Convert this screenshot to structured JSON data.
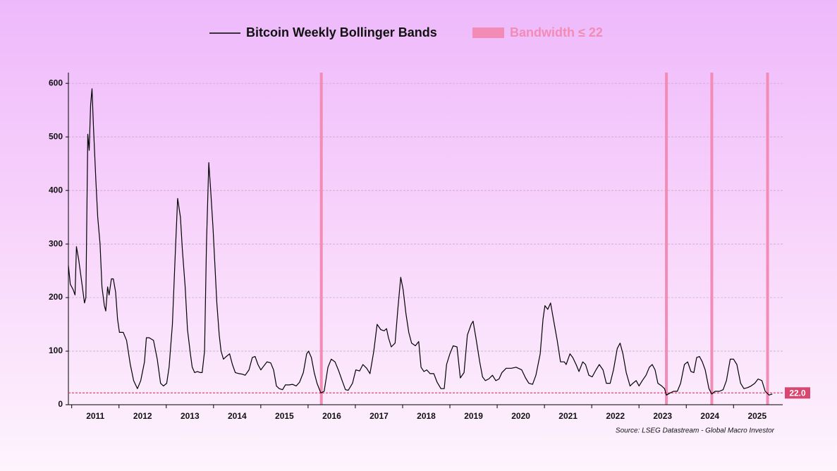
{
  "chart_data": {
    "type": "line",
    "source": "Source: LSEG Datastream - Global Macro Investor",
    "x": [
      2010.93,
      2010.97,
      2011.03,
      2011.07,
      2011.1,
      2011.15,
      2011.21,
      2011.27,
      2011.3,
      2011.34,
      2011.37,
      2011.4,
      2011.43,
      2011.46,
      2011.51,
      2011.55,
      2011.6,
      2011.64,
      2011.69,
      2011.72,
      2011.76,
      2011.79,
      2011.84,
      2011.88,
      2011.93,
      2011.97,
      2012.01,
      2012.09,
      2012.16,
      2012.24,
      2012.31,
      2012.39,
      2012.46,
      2012.54,
      2012.58,
      2012.64,
      2012.73,
      2012.81,
      2012.88,
      2012.94,
      2013.01,
      2013.06,
      2013.13,
      2013.19,
      2013.24,
      2013.3,
      2013.34,
      2013.4,
      2013.45,
      2013.51,
      2013.55,
      2013.6,
      2013.66,
      2013.72,
      2013.76,
      2013.81,
      2013.85,
      2013.9,
      2013.94,
      2013.99,
      2014.03,
      2014.07,
      2014.12,
      2014.16,
      2014.21,
      2014.27,
      2014.34,
      2014.4,
      2014.46,
      2014.54,
      2014.61,
      2014.67,
      2014.75,
      2014.82,
      2014.88,
      2014.94,
      2015.0,
      2015.06,
      2015.13,
      2015.21,
      2015.27,
      2015.33,
      2015.39,
      2015.46,
      2015.52,
      2015.6,
      2015.67,
      2015.75,
      2015.82,
      2015.9,
      2015.97,
      2016.01,
      2016.07,
      2016.13,
      2016.19,
      2016.27,
      2016.34,
      2016.42,
      2016.49,
      2016.57,
      2016.64,
      2016.72,
      2016.79,
      2016.85,
      2016.94,
      2017.01,
      2017.09,
      2017.16,
      2017.24,
      2017.31,
      2017.39,
      2017.46,
      2017.54,
      2017.61,
      2017.66,
      2017.7,
      2017.76,
      2017.84,
      2017.9,
      2017.96,
      2018.01,
      2018.07,
      2018.13,
      2018.19,
      2018.27,
      2018.34,
      2018.39,
      2018.45,
      2018.51,
      2018.58,
      2018.66,
      2018.73,
      2018.81,
      2018.88,
      2018.93,
      2019.0,
      2019.07,
      2019.15,
      2019.22,
      2019.3,
      2019.37,
      2019.45,
      2019.49,
      2019.55,
      2019.63,
      2019.69,
      2019.75,
      2019.82,
      2019.9,
      2019.97,
      2020.04,
      2020.1,
      2020.19,
      2020.3,
      2020.4,
      2020.52,
      2020.6,
      2020.67,
      2020.75,
      2020.82,
      2020.91,
      2020.97,
      2021.01,
      2021.07,
      2021.13,
      2021.19,
      2021.27,
      2021.34,
      2021.42,
      2021.46,
      2021.54,
      2021.6,
      2021.67,
      2021.73,
      2021.81,
      2021.87,
      2021.94,
      2022.01,
      2022.09,
      2022.16,
      2022.24,
      2022.31,
      2022.39,
      2022.46,
      2022.54,
      2022.6,
      2022.66,
      2022.73,
      2022.81,
      2022.87,
      2022.94,
      2023.0,
      2023.07,
      2023.15,
      2023.22,
      2023.28,
      2023.34,
      2023.4,
      2023.48,
      2023.54,
      2023.58,
      2023.66,
      2023.73,
      2023.81,
      2023.88,
      2023.96,
      2024.03,
      2024.1,
      2024.16,
      2024.22,
      2024.28,
      2024.34,
      2024.4,
      2024.48,
      2024.54,
      2024.61,
      2024.7,
      2024.78,
      2024.85,
      2024.93,
      2025.0,
      2025.07,
      2025.15,
      2025.22,
      2025.3,
      2025.37,
      2025.45,
      2025.52,
      2025.6,
      2025.67,
      2025.75,
      2025.82
    ],
    "series": [
      {
        "name": "Bitcoin Weekly Bollinger Bands",
        "color": "#000000",
        "values": [
          260,
          225,
          215,
          205,
          295,
          270,
          230,
          190,
          200,
          505,
          475,
          560,
          590,
          520,
          420,
          350,
          300,
          220,
          185,
          175,
          220,
          205,
          235,
          235,
          210,
          160,
          135,
          135,
          120,
          75,
          45,
          30,
          45,
          80,
          125,
          125,
          120,
          85,
          40,
          35,
          40,
          70,
          150,
          280,
          385,
          350,
          290,
          220,
          140,
          95,
          70,
          60,
          62,
          60,
          60,
          100,
          300,
          452,
          400,
          330,
          260,
          190,
          130,
          100,
          85,
          90,
          95,
          75,
          60,
          58,
          57,
          55,
          65,
          88,
          90,
          75,
          65,
          72,
          80,
          78,
          65,
          35,
          30,
          28,
          37,
          37,
          38,
          35,
          42,
          60,
          95,
          100,
          88,
          60,
          40,
          22,
          25,
          70,
          85,
          80,
          65,
          45,
          28,
          27,
          40,
          65,
          63,
          75,
          68,
          58,
          100,
          150,
          140,
          138,
          142,
          125,
          108,
          115,
          180,
          238,
          215,
          170,
          135,
          115,
          110,
          118,
          70,
          62,
          65,
          58,
          58,
          42,
          30,
          30,
          75,
          95,
          110,
          108,
          50,
          60,
          130,
          150,
          156,
          125,
          80,
          52,
          45,
          48,
          55,
          45,
          48,
          60,
          68,
          68,
          70,
          65,
          50,
          40,
          38,
          55,
          95,
          160,
          185,
          178,
          190,
          160,
          120,
          80,
          80,
          75,
          95,
          88,
          75,
          62,
          80,
          75,
          55,
          52,
          65,
          75,
          65,
          40,
          40,
          65,
          105,
          115,
          95,
          60,
          35,
          40,
          45,
          35,
          45,
          55,
          70,
          75,
          65,
          40,
          35,
          30,
          18,
          22,
          25,
          25,
          40,
          75,
          80,
          62,
          60,
          88,
          90,
          80,
          65,
          30,
          20,
          25,
          25,
          28,
          45,
          85,
          85,
          75,
          40,
          30,
          32,
          35,
          40,
          48,
          45,
          25,
          18,
          20
        ]
      }
    ],
    "highlight": {
      "name": "Bandwidth ≤ 22",
      "color": "#f28bb5",
      "x": [
        2016.28,
        2023.58,
        2024.54,
        2025.72
      ]
    },
    "threshold": {
      "value": 22,
      "value_label": "22.0",
      "color": "#d9466f"
    },
    "xlim": [
      2010.93,
      2026.04
    ],
    "xticks": [
      {
        "value": 2011,
        "label": "2011"
      },
      {
        "value": 2012,
        "label": "2012"
      },
      {
        "value": 2013,
        "label": "2013"
      },
      {
        "value": 2014,
        "label": "2014"
      },
      {
        "value": 2015,
        "label": "2015"
      },
      {
        "value": 2016,
        "label": "2016"
      },
      {
        "value": 2017,
        "label": "2017"
      },
      {
        "value": 2018,
        "label": "2018"
      },
      {
        "value": 2019,
        "label": "2019"
      },
      {
        "value": 2020,
        "label": "2020"
      },
      {
        "value": 2021,
        "label": "2021"
      },
      {
        "value": 2022,
        "label": "2022"
      },
      {
        "value": 2023,
        "label": "2023"
      },
      {
        "value": 2024,
        "label": "2024"
      },
      {
        "value": 2025,
        "label": "2025"
      }
    ],
    "ylim": [
      0,
      620
    ],
    "yticks": [
      0,
      100,
      200,
      300,
      400,
      500,
      600
    ],
    "grid": true
  }
}
